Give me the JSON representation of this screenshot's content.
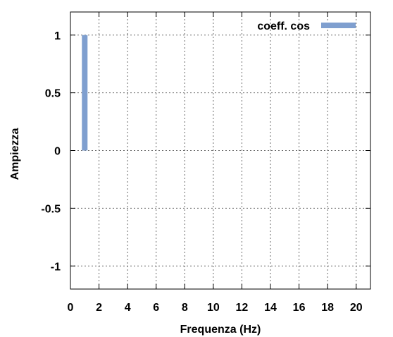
{
  "chart_data": {
    "type": "bar",
    "title": "",
    "xlabel": "Frequenza (Hz)",
    "ylabel": "Ampiezza",
    "xlim": [
      0,
      21
    ],
    "ylim": [
      -1.2,
      1.2
    ],
    "x_ticks": [
      0,
      2,
      4,
      6,
      8,
      10,
      12,
      14,
      16,
      18,
      20
    ],
    "y_ticks": [
      -1,
      -0.5,
      0,
      0.5,
      1
    ],
    "grid": true,
    "grid_style": "dotted",
    "legend_position": "top-right",
    "series": [
      {
        "name": "coeff. cos",
        "color": "#7f9fcf",
        "points": [
          {
            "x": 1,
            "y": 1
          }
        ]
      }
    ]
  }
}
